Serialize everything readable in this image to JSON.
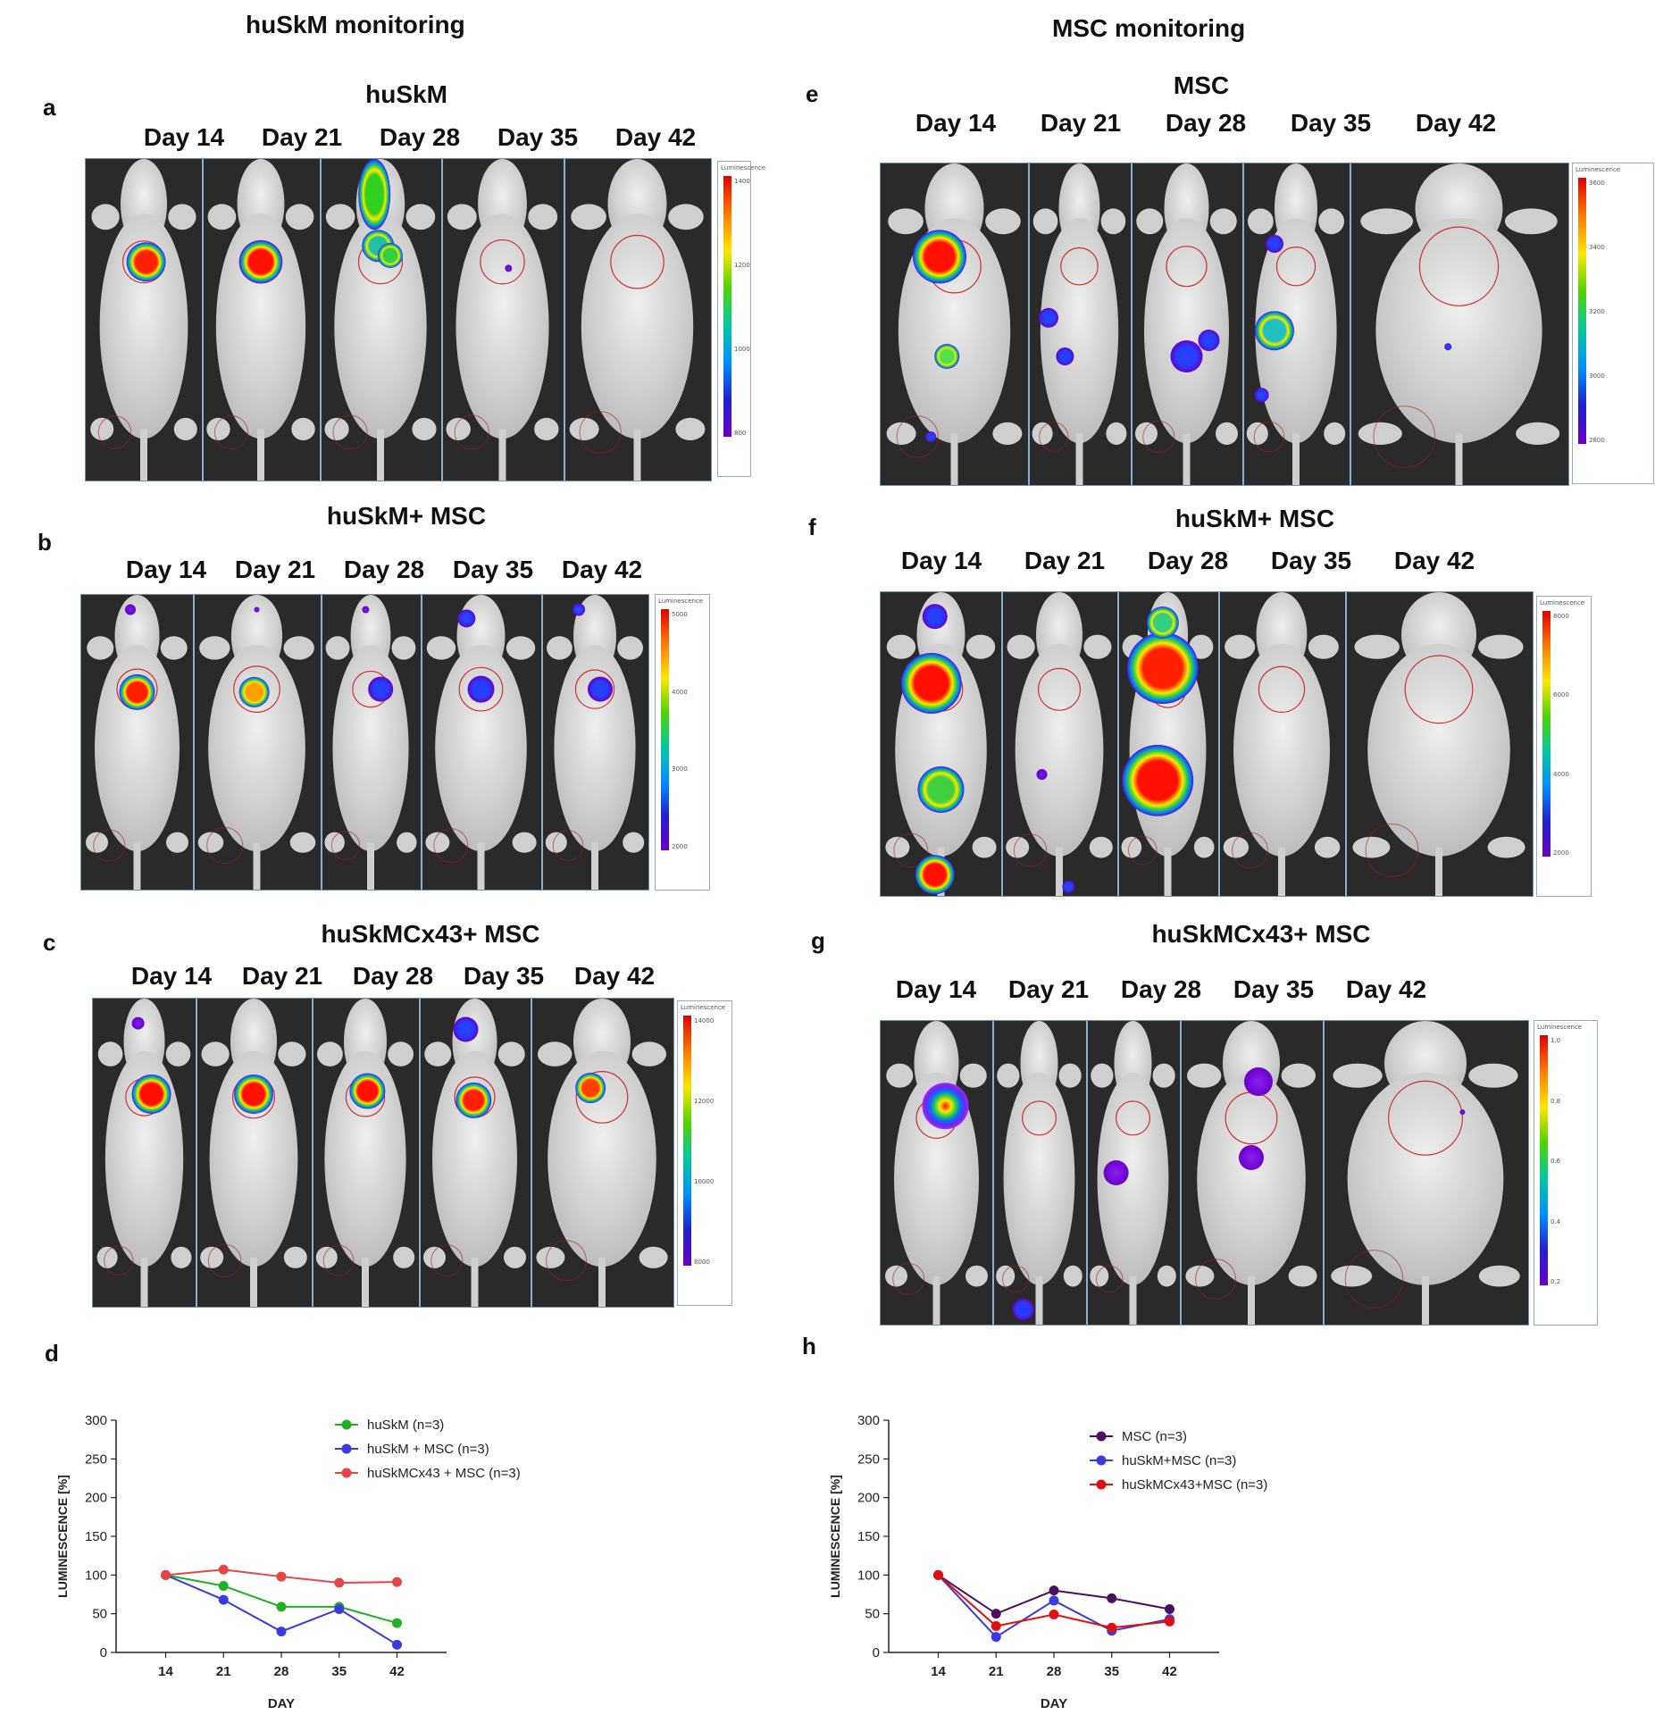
{
  "columns": {
    "left_title": "huSkM monitoring",
    "right_title": "MSC monitoring"
  },
  "panels": [
    {
      "label": "a",
      "title": "huSkM",
      "days": [
        "Day 14",
        "Day 21",
        "Day 28",
        "Day 35",
        "Day 42"
      ],
      "scale_title": "Luminescence",
      "scale_ticks": [
        "1400",
        "1200",
        "1000",
        "800"
      ]
    },
    {
      "label": "b",
      "title": "huSkM+ MSC",
      "days": [
        "Day 14",
        "Day 21",
        "Day 28",
        "Day 35",
        "Day 42"
      ],
      "scale_title": "Luminescence",
      "scale_ticks": [
        "5000",
        "4000",
        "3000",
        "2000"
      ]
    },
    {
      "label": "c",
      "title": "huSkMCx43+ MSC",
      "days": [
        "Day 14",
        "Day 21",
        "Day 28",
        "Day 35",
        "Day 42"
      ],
      "scale_title": "Luminescence",
      "scale_ticks": [
        "14000",
        "12000",
        "10000",
        "8000"
      ]
    },
    {
      "label": "e",
      "title": "MSC",
      "days": [
        "Day 14",
        "Day 21",
        "Day 28",
        "Day 35",
        "Day 42"
      ],
      "scale_title": "Luminescence",
      "scale_ticks": [
        "3600",
        "3400",
        "3200",
        "3000",
        "2800"
      ]
    },
    {
      "label": "f",
      "title": "huSkM+ MSC",
      "days": [
        "Day 14",
        "Day 21",
        "Day 28",
        "Day 35",
        "Day 42"
      ],
      "scale_title": "Luminescence",
      "scale_ticks": [
        "8000",
        "6000",
        "4000",
        "2000"
      ]
    },
    {
      "label": "g",
      "title": "huSkMCx43+ MSC",
      "days": [
        "Day 14",
        "Day 21",
        "Day 28",
        "Day 35",
        "Day 42"
      ],
      "scale_title": "Luminescence",
      "scale_ticks": [
        "1.0",
        "0.8",
        "0.6",
        "0.4",
        "0.2"
      ]
    }
  ],
  "chart_data": [
    {
      "label": "d",
      "type": "line",
      "xlabel": "DAY",
      "ylabel": "LUMINESCENCE [%]",
      "x": [
        14,
        21,
        28,
        35,
        42
      ],
      "ylim": [
        0,
        300
      ],
      "yticks": [
        0,
        50,
        100,
        150,
        200,
        250,
        300
      ],
      "series": [
        {
          "name": "huSkM (n=3)",
          "color": "#22b022",
          "values": [
            100,
            86,
            59,
            59,
            38
          ]
        },
        {
          "name": "huSkM + MSC (n=3)",
          "color": "#3a3ae0",
          "values": [
            100,
            68,
            27,
            56,
            10
          ]
        },
        {
          "name": "huSkMCx43 + MSC (n=3)",
          "color": "#e64545",
          "values": [
            100,
            107,
            98,
            90,
            91
          ]
        }
      ]
    },
    {
      "label": "h",
      "type": "line",
      "xlabel": "DAY",
      "ylabel": "LUMINESCENCE [%]",
      "x": [
        14,
        21,
        28,
        35,
        42
      ],
      "ylim": [
        0,
        300
      ],
      "yticks": [
        0,
        50,
        100,
        150,
        200,
        250,
        300
      ],
      "series": [
        {
          "name": "MSC (n=3)",
          "color": "#4b1060",
          "values": [
            100,
            50,
            80,
            70,
            56
          ]
        },
        {
          "name": "huSkM+MSC (n=3)",
          "color": "#3a3ae0",
          "values": [
            100,
            20,
            67,
            28,
            43
          ]
        },
        {
          "name": "huSkMCx43+MSC (n=3)",
          "color": "#e01010",
          "values": [
            100,
            34,
            49,
            32,
            40
          ]
        }
      ]
    }
  ]
}
